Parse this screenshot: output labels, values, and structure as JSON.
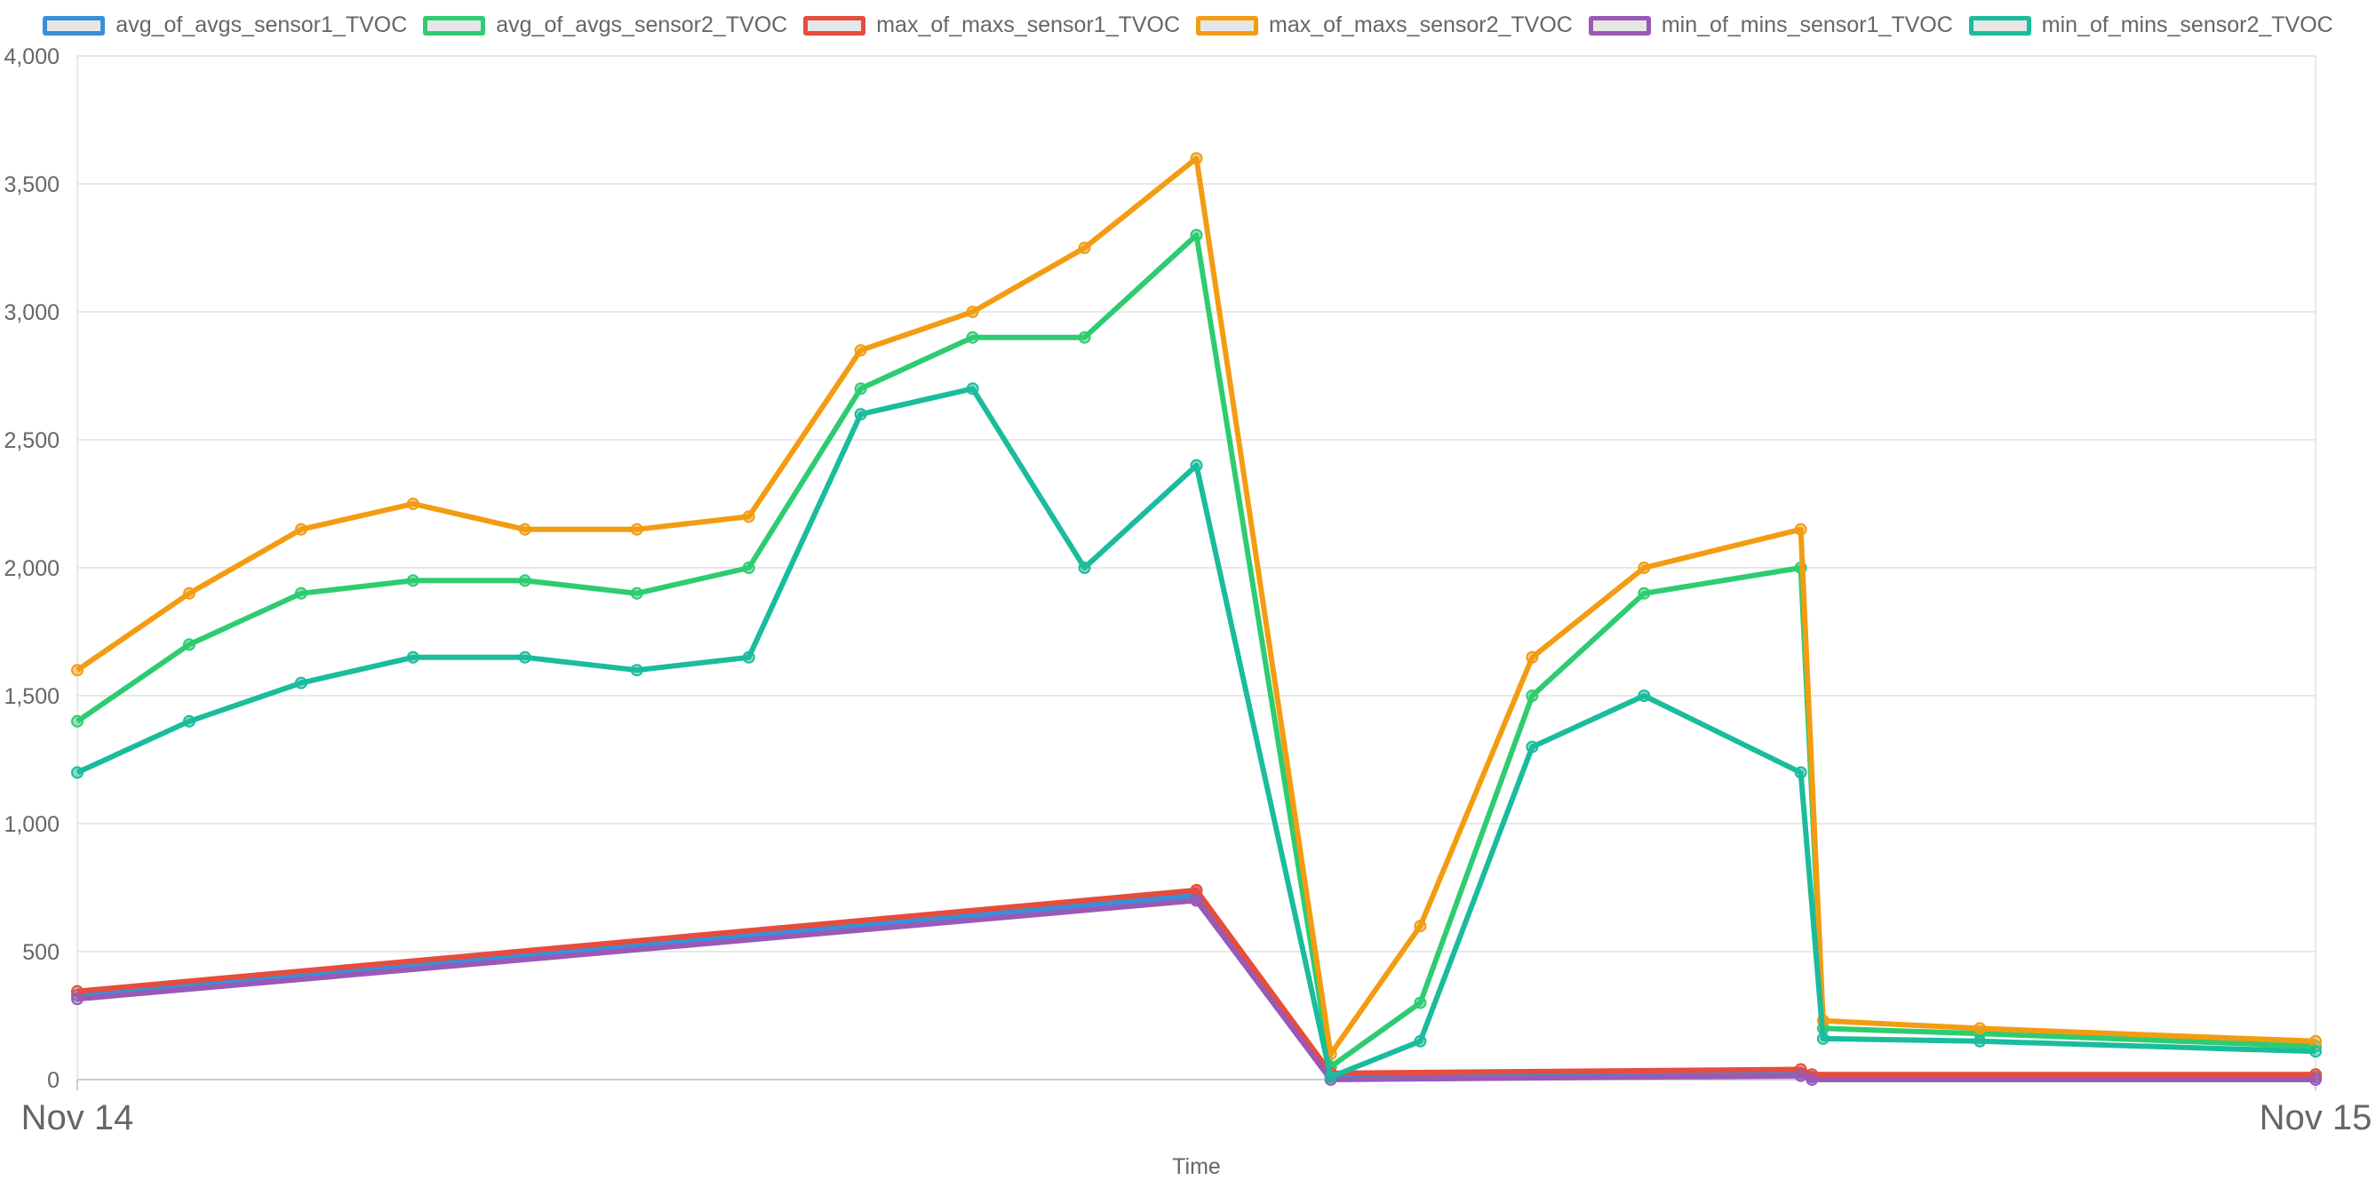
{
  "chart_data": {
    "type": "line",
    "title": "",
    "xlabel": "Time",
    "ylabel": "",
    "x_ticks": [
      "Nov 14",
      "Nov 15"
    ],
    "y_ticks": [
      "0",
      "500",
      "1,000",
      "1,500",
      "2,000",
      "2,500",
      "3,000",
      "3,500",
      "4,000"
    ],
    "ylim": [
      0,
      4000
    ],
    "xlim": [
      0,
      1
    ],
    "grid": true,
    "legend_position": "top",
    "series": [
      {
        "name": "avg_of_avgs_sensor1_TVOC",
        "color": "#3a8fd9",
        "x": [
          0,
          0.5,
          0.5,
          0.56,
          0.77,
          0.775,
          1
        ],
        "y": [
          330,
          720,
          720,
          10,
          25,
          10,
          10
        ]
      },
      {
        "name": "avg_of_avgs_sensor2_TVOC",
        "color": "#2ecc71",
        "x": [
          0,
          0.05,
          0.1,
          0.15,
          0.2,
          0.25,
          0.3,
          0.35,
          0.4,
          0.45,
          0.5,
          0.56,
          0.6,
          0.65,
          0.7,
          0.77,
          0.78,
          0.85,
          1
        ],
        "y": [
          1400,
          1700,
          1900,
          1950,
          1950,
          1900,
          2000,
          2700,
          2900,
          2900,
          3300,
          50,
          300,
          1500,
          1900,
          2000,
          200,
          180,
          130
        ]
      },
      {
        "name": "max_of_maxs_sensor1_TVOC",
        "color": "#e74c3c",
        "x": [
          0,
          0.5,
          0.5,
          0.56,
          0.77,
          0.775,
          1
        ],
        "y": [
          345,
          740,
          740,
          25,
          40,
          20,
          20
        ]
      },
      {
        "name": "max_of_maxs_sensor2_TVOC",
        "color": "#f39c12",
        "x": [
          0,
          0.05,
          0.1,
          0.15,
          0.2,
          0.25,
          0.3,
          0.35,
          0.4,
          0.45,
          0.5,
          0.56,
          0.6,
          0.65,
          0.7,
          0.77,
          0.78,
          0.85,
          1
        ],
        "y": [
          1600,
          1900,
          2150,
          2250,
          2150,
          2150,
          2200,
          2850,
          3000,
          3250,
          3600,
          100,
          600,
          1650,
          2000,
          2150,
          230,
          200,
          150
        ]
      },
      {
        "name": "min_of_mins_sensor1_TVOC",
        "color": "#9b59b6",
        "x": [
          0,
          0.5,
          0.5,
          0.56,
          0.77,
          0.775,
          1
        ],
        "y": [
          315,
          700,
          700,
          0,
          15,
          0,
          0
        ]
      },
      {
        "name": "min_of_mins_sensor2_TVOC",
        "color": "#1abc9c",
        "x": [
          0,
          0.05,
          0.1,
          0.15,
          0.2,
          0.25,
          0.3,
          0.35,
          0.4,
          0.45,
          0.5,
          0.56,
          0.6,
          0.65,
          0.7,
          0.77,
          0.78,
          0.85,
          1
        ],
        "y": [
          1200,
          1400,
          1550,
          1650,
          1650,
          1600,
          1650,
          2600,
          2700,
          2000,
          2400,
          10,
          150,
          1300,
          1500,
          1200,
          160,
          150,
          110
        ]
      }
    ]
  }
}
